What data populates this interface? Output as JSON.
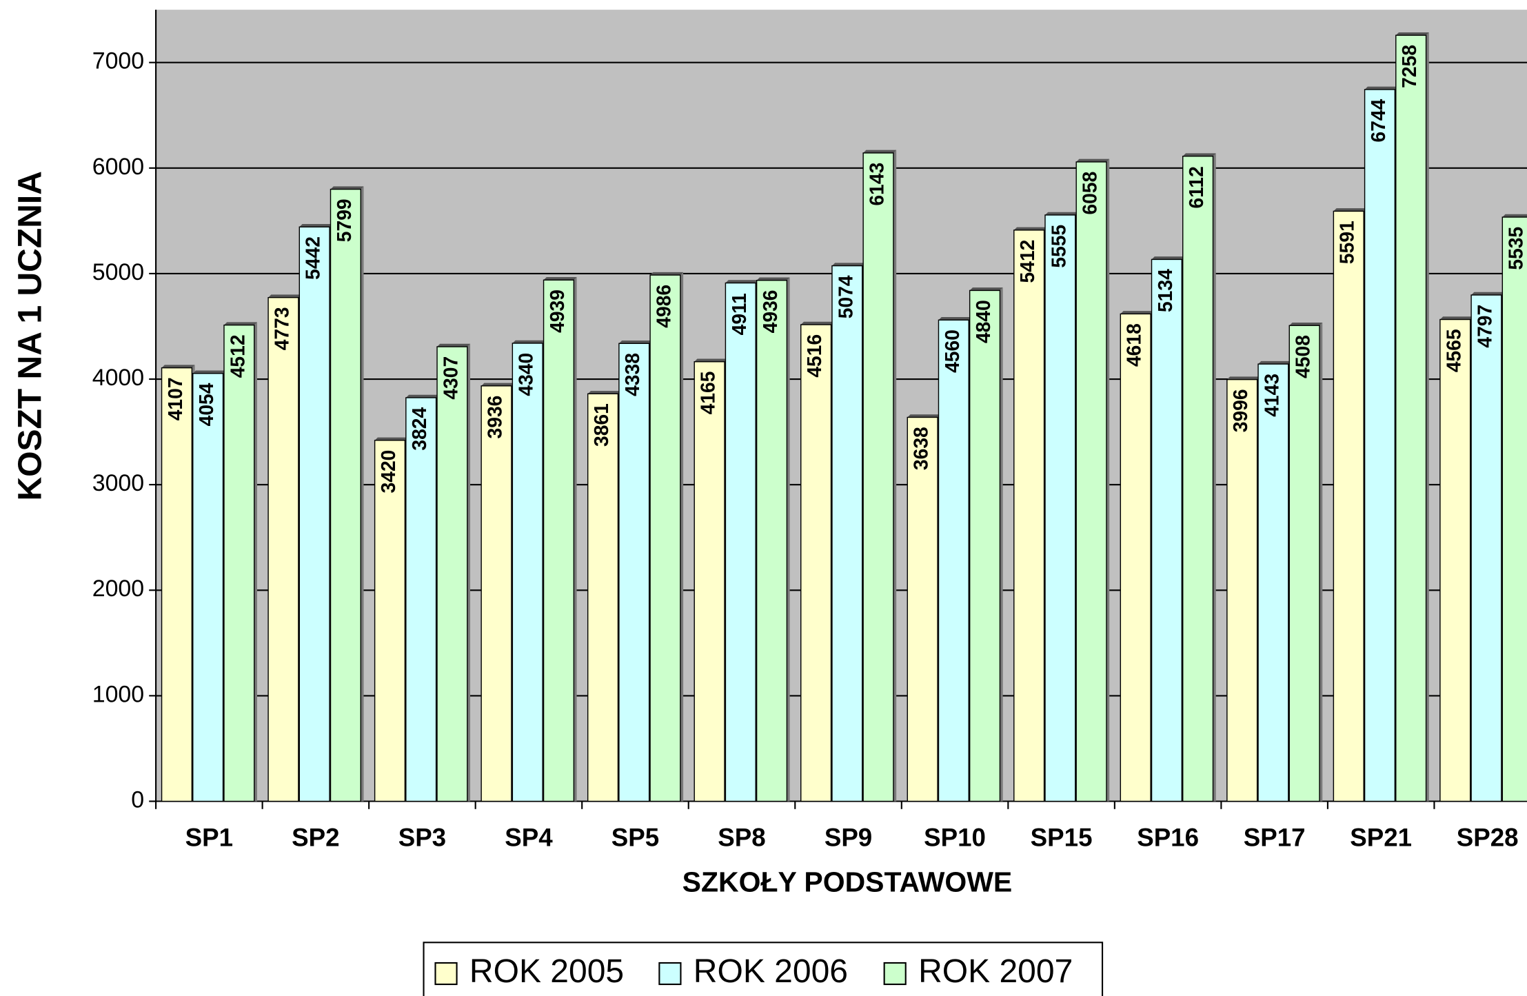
{
  "chart_data": {
    "type": "bar",
    "x_label": "SZKOŁY PODSTAWOWE",
    "y_label": "KOSZT NA 1 UCZNIA",
    "categories": [
      "SP1",
      "SP2",
      "SP3",
      "SP4",
      "SP5",
      "SP8",
      "SP9",
      "SP10",
      "SP15",
      "SP16",
      "SP17",
      "SP21",
      "SP28"
    ],
    "series": [
      {
        "name": "ROK 2005",
        "color": "#ffffcc",
        "values": [
          4107,
          4773,
          3420,
          3936,
          3861,
          4165,
          4516,
          3638,
          5412,
          4618,
          3996,
          5591,
          4565
        ]
      },
      {
        "name": "ROK 2006",
        "color": "#ccffff",
        "values": [
          4054,
          5442,
          3824,
          4340,
          4338,
          4911,
          5074,
          4560,
          5555,
          5134,
          4143,
          6744,
          4797
        ]
      },
      {
        "name": "ROK 2007",
        "color": "#ccffcc",
        "values": [
          4512,
          5799,
          4307,
          4939,
          4986,
          4936,
          6143,
          4840,
          6058,
          6112,
          4508,
          7258,
          5535
        ]
      }
    ],
    "ylim": [
      0,
      7500
    ],
    "yticks": [
      0,
      1000,
      2000,
      3000,
      4000,
      5000,
      6000,
      7000
    ],
    "grid": true,
    "plot_background": "#c0c0c0",
    "legend": "bottom"
  }
}
